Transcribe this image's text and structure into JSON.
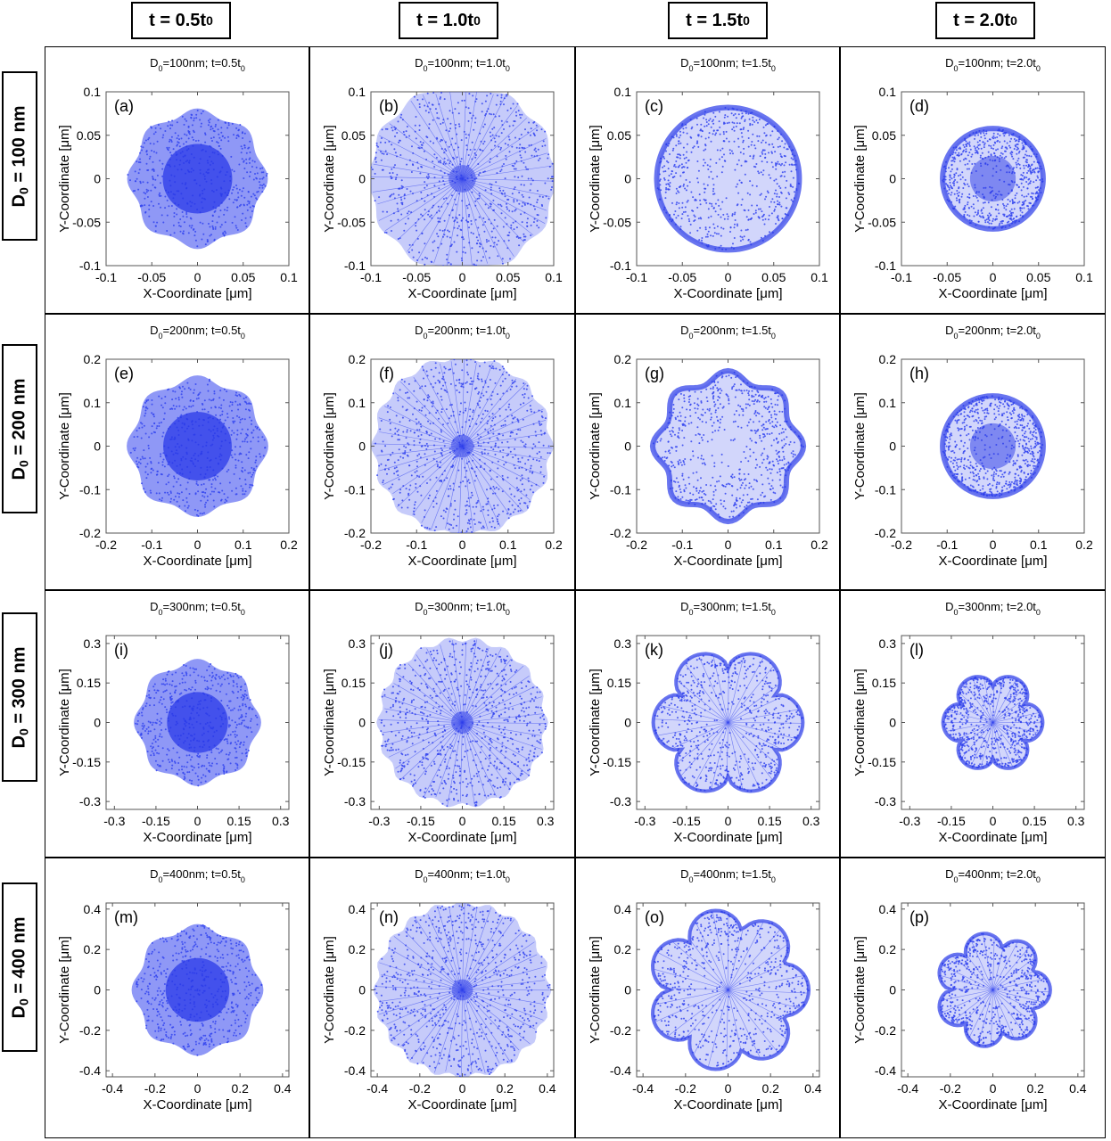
{
  "column_headers": [
    {
      "main": "t = 0.5t",
      "sub": "0"
    },
    {
      "main": "t = 1.0t",
      "sub": "0"
    },
    {
      "main": "t = 1.5t",
      "sub": "0"
    },
    {
      "main": "t = 2.0t",
      "sub": "0"
    }
  ],
  "row_headers": [
    {
      "pre": "D",
      "sub": "0",
      "post": " = 100 nm"
    },
    {
      "pre": "D",
      "sub": "0",
      "post": " = 200 nm"
    },
    {
      "pre": "D",
      "sub": "0",
      "post": " = 300 nm"
    },
    {
      "pre": "D",
      "sub": "0",
      "post": " = 400 nm"
    }
  ],
  "colors": {
    "points": "#3344ee",
    "core": "#2a3ae8",
    "frame": "#000000"
  },
  "chart_data": [
    {
      "type": "scatter",
      "panel_label": "(a)",
      "title": "D₀=100nm; t=0.5t₀",
      "xlabel": "X-Coordinate [μm]",
      "ylabel": "Y-Coordinate [μm]",
      "xlim": [
        -0.1,
        0.1
      ],
      "ylim": [
        -0.1,
        0.1
      ],
      "xticks": [
        -0.1,
        -0.05,
        0,
        0.05,
        0.1
      ],
      "yticks": [
        -0.1,
        -0.05,
        0,
        0.05,
        0.1
      ],
      "tick_labels": [
        "-0.1",
        "-0.05",
        "0",
        "0.05",
        "0.1"
      ],
      "outer_radius": 0.077,
      "core_radius": 0.038,
      "pattern": "dense-hexagonal",
      "lobes": 8
    },
    {
      "type": "scatter",
      "panel_label": "(b)",
      "title": "D₀=100nm; t=1.0t₀",
      "xlabel": "X-Coordinate [μm]",
      "ylabel": "Y-Coordinate [μm]",
      "xlim": [
        -0.1,
        0.1
      ],
      "ylim": [
        -0.1,
        0.1
      ],
      "xticks": [
        -0.1,
        -0.05,
        0,
        0.05,
        0.1
      ],
      "yticks": [
        -0.1,
        -0.05,
        0,
        0.05,
        0.1
      ],
      "tick_labels": [
        "-0.1",
        "-0.05",
        "0",
        "0.05",
        "0.1"
      ],
      "outer_radius": 0.105,
      "core_radius": 0.015,
      "pattern": "radial-mesh",
      "lobes": 12
    },
    {
      "type": "scatter",
      "panel_label": "(c)",
      "title": "D₀=100nm; t=1.5t₀",
      "xlabel": "X-Coordinate [μm]",
      "ylabel": "Y-Coordinate [μm]",
      "xlim": [
        -0.1,
        0.1
      ],
      "ylim": [
        -0.1,
        0.1
      ],
      "xticks": [
        -0.1,
        -0.05,
        0,
        0.05,
        0.1
      ],
      "yticks": [
        -0.1,
        -0.05,
        0,
        0.05,
        0.1
      ],
      "tick_labels": [
        "-0.1",
        "-0.05",
        "0",
        "0.05",
        "0.1"
      ],
      "outer_radius": 0.078,
      "core_radius": 0,
      "pattern": "rim-dense",
      "lobes": 0
    },
    {
      "type": "scatter",
      "panel_label": "(d)",
      "title": "D₀=100nm; t=2.0t₀",
      "xlabel": "X-Coordinate [μm]",
      "ylabel": "Y-Coordinate [μm]",
      "xlim": [
        -0.1,
        0.1
      ],
      "ylim": [
        -0.1,
        0.1
      ],
      "xticks": [
        -0.1,
        -0.05,
        0,
        0.05,
        0.1
      ],
      "yticks": [
        -0.1,
        -0.05,
        0,
        0.05,
        0.1
      ],
      "tick_labels": [
        "-0.1",
        "-0.05",
        "0",
        "0.05",
        "0.1"
      ],
      "outer_radius": 0.055,
      "core_radius": 0.025,
      "pattern": "rim-dense",
      "lobes": 0
    },
    {
      "type": "scatter",
      "panel_label": "(e)",
      "title": "D₀=200nm; t=0.5t₀",
      "xlabel": "X-Coordinate [μm]",
      "ylabel": "Y-Coordinate [μm]",
      "xlim": [
        -0.2,
        0.2
      ],
      "ylim": [
        -0.2,
        0.2
      ],
      "xticks": [
        -0.2,
        -0.1,
        0,
        0.1,
        0.2
      ],
      "yticks": [
        -0.2,
        -0.1,
        0,
        0.1,
        0.2
      ],
      "tick_labels": [
        "-0.2",
        "-0.1",
        "0",
        "0.1",
        "0.2"
      ],
      "outer_radius": 0.155,
      "core_radius": 0.075,
      "pattern": "dense-hexagonal",
      "lobes": 8
    },
    {
      "type": "scatter",
      "panel_label": "(f)",
      "title": "D₀=200nm; t=1.0t₀",
      "xlabel": "X-Coordinate [μm]",
      "ylabel": "Y-Coordinate [μm]",
      "xlim": [
        -0.2,
        0.2
      ],
      "ylim": [
        -0.2,
        0.2
      ],
      "xticks": [
        -0.2,
        -0.1,
        0,
        0.1,
        0.2
      ],
      "yticks": [
        -0.2,
        -0.1,
        0,
        0.1,
        0.2
      ],
      "tick_labels": [
        "-0.2",
        "-0.1",
        "0",
        "0.1",
        "0.2"
      ],
      "outer_radius": 0.2,
      "core_radius": 0.025,
      "pattern": "radial-mesh",
      "lobes": 16
    },
    {
      "type": "scatter",
      "panel_label": "(g)",
      "title": "D₀=200nm; t=1.5t₀",
      "xlabel": "X-Coordinate [μm]",
      "ylabel": "Y-Coordinate [μm]",
      "xlim": [
        -0.2,
        0.2
      ],
      "ylim": [
        -0.2,
        0.2
      ],
      "xticks": [
        -0.2,
        -0.1,
        0,
        0.1,
        0.2
      ],
      "yticks": [
        -0.2,
        -0.1,
        0,
        0.1,
        0.2
      ],
      "tick_labels": [
        "-0.2",
        "-0.1",
        "0",
        "0.1",
        "0.2"
      ],
      "outer_radius": 0.165,
      "core_radius": 0,
      "pattern": "rim-dense",
      "lobes": 8
    },
    {
      "type": "scatter",
      "panel_label": "(h)",
      "title": "D₀=200nm; t=2.0t₀",
      "xlabel": "X-Coordinate [μm]",
      "ylabel": "Y-Coordinate [μm]",
      "xlim": [
        -0.2,
        0.2
      ],
      "ylim": [
        -0.2,
        0.2
      ],
      "xticks": [
        -0.2,
        -0.1,
        0,
        0.1,
        0.2
      ],
      "yticks": [
        -0.2,
        -0.1,
        0,
        0.1,
        0.2
      ],
      "tick_labels": [
        "-0.2",
        "-0.1",
        "0",
        "0.1",
        "0.2"
      ],
      "outer_radius": 0.11,
      "core_radius": 0.05,
      "pattern": "rim-dense",
      "lobes": 0
    },
    {
      "type": "scatter",
      "panel_label": "(i)",
      "title": "D₀=300nm; t=0.5t₀",
      "xlabel": "X-Coordinate [μm]",
      "ylabel": "Y-Coordinate [μm]",
      "xlim": [
        -0.33,
        0.33
      ],
      "ylim": [
        -0.33,
        0.33
      ],
      "xticks": [
        -0.3,
        -0.15,
        0,
        0.15,
        0.3
      ],
      "yticks": [
        -0.3,
        -0.15,
        0,
        0.15,
        0.3
      ],
      "tick_labels": [
        "-0.3",
        "-0.15",
        "0",
        "0.15",
        "0.3"
      ],
      "outer_radius": 0.23,
      "core_radius": 0.11,
      "pattern": "dense-hexagonal",
      "lobes": 8
    },
    {
      "type": "scatter",
      "panel_label": "(j)",
      "title": "D₀=300nm; t=1.0t₀",
      "xlabel": "X-Coordinate [μm]",
      "ylabel": "Y-Coordinate [μm]",
      "xlim": [
        -0.33,
        0.33
      ],
      "ylim": [
        -0.33,
        0.33
      ],
      "xticks": [
        -0.3,
        -0.15,
        0,
        0.15,
        0.3
      ],
      "yticks": [
        -0.3,
        -0.15,
        0,
        0.15,
        0.3
      ],
      "tick_labels": [
        "-0.3",
        "-0.15",
        "0",
        "0.15",
        "0.3"
      ],
      "outer_radius": 0.31,
      "core_radius": 0.04,
      "pattern": "radial-mesh",
      "lobes": 18
    },
    {
      "type": "scatter",
      "panel_label": "(k)",
      "title": "D₀=300nm; t=1.5t₀",
      "xlabel": "X-Coordinate [μm]",
      "ylabel": "Y-Coordinate [μm]",
      "xlim": [
        -0.33,
        0.33
      ],
      "ylim": [
        -0.33,
        0.33
      ],
      "xticks": [
        -0.3,
        -0.15,
        0,
        0.15,
        0.3
      ],
      "yticks": [
        -0.3,
        -0.15,
        0,
        0.15,
        0.3
      ],
      "tick_labels": [
        "-0.3",
        "-0.15",
        "0",
        "0.15",
        "0.3"
      ],
      "outer_radius": 0.27,
      "core_radius": 0,
      "pattern": "petals",
      "lobes": 6
    },
    {
      "type": "scatter",
      "panel_label": "(l)",
      "title": "D₀=300nm; t=2.0t₀",
      "xlabel": "X-Coordinate [μm]",
      "ylabel": "Y-Coordinate [μm]",
      "xlim": [
        -0.33,
        0.33
      ],
      "ylim": [
        -0.33,
        0.33
      ],
      "xticks": [
        -0.3,
        -0.15,
        0,
        0.15,
        0.3
      ],
      "yticks": [
        -0.3,
        -0.15,
        0,
        0.15,
        0.3
      ],
      "tick_labels": [
        "-0.3",
        "-0.15",
        "0",
        "0.15",
        "0.3"
      ],
      "outer_radius": 0.18,
      "core_radius": 0,
      "pattern": "petals",
      "lobes": 6
    },
    {
      "type": "scatter",
      "panel_label": "(m)",
      "title": "D₀=400nm; t=0.5t₀",
      "xlabel": "X-Coordinate [μm]",
      "ylabel": "Y-Coordinate [μm]",
      "xlim": [
        -0.43,
        0.43
      ],
      "ylim": [
        -0.43,
        0.43
      ],
      "xticks": [
        -0.4,
        -0.2,
        0,
        0.2,
        0.4
      ],
      "yticks": [
        -0.4,
        -0.2,
        0,
        0.2,
        0.4
      ],
      "tick_labels": [
        "-0.4",
        "-0.2",
        "0",
        "0.2",
        "0.4"
      ],
      "outer_radius": 0.31,
      "core_radius": 0.15,
      "pattern": "dense-hexagonal",
      "lobes": 8
    },
    {
      "type": "scatter",
      "panel_label": "(n)",
      "title": "D₀=400nm; t=1.0t₀",
      "xlabel": "X-Coordinate [μm]",
      "ylabel": "Y-Coordinate [μm]",
      "xlim": [
        -0.43,
        0.43
      ],
      "ylim": [
        -0.43,
        0.43
      ],
      "xticks": [
        -0.4,
        -0.2,
        0,
        0.2,
        0.4
      ],
      "yticks": [
        -0.4,
        -0.2,
        0,
        0.2,
        0.4
      ],
      "tick_labels": [
        "-0.4",
        "-0.2",
        "0",
        "0.2",
        "0.4"
      ],
      "outer_radius": 0.42,
      "core_radius": 0.05,
      "pattern": "radial-mesh",
      "lobes": 20
    },
    {
      "type": "scatter",
      "panel_label": "(o)",
      "title": "D₀=400nm; t=1.5t₀",
      "xlabel": "X-Coordinate [μm]",
      "ylabel": "Y-Coordinate [μm]",
      "xlim": [
        -0.43,
        0.43
      ],
      "ylim": [
        -0.43,
        0.43
      ],
      "xticks": [
        -0.4,
        -0.2,
        0,
        0.2,
        0.4
      ],
      "yticks": [
        -0.4,
        -0.2,
        0,
        0.2,
        0.4
      ],
      "tick_labels": [
        "-0.4",
        "-0.2",
        "0",
        "0.2",
        "0.4"
      ],
      "outer_radius": 0.38,
      "core_radius": 0,
      "pattern": "petals",
      "lobes": 7
    },
    {
      "type": "scatter",
      "panel_label": "(p)",
      "title": "D₀=400nm; t=2.0t₀",
      "xlabel": "X-Coordinate [μm]",
      "ylabel": "Y-Coordinate [μm]",
      "xlim": [
        -0.43,
        0.43
      ],
      "ylim": [
        -0.43,
        0.43
      ],
      "xticks": [
        -0.4,
        -0.2,
        0,
        0.2,
        0.4
      ],
      "yticks": [
        -0.4,
        -0.2,
        0,
        0.2,
        0.4
      ],
      "tick_labels": [
        "-0.4",
        "-0.2",
        "0",
        "0.2",
        "0.4"
      ],
      "outer_radius": 0.27,
      "core_radius": 0,
      "pattern": "petals",
      "lobes": 7
    }
  ]
}
